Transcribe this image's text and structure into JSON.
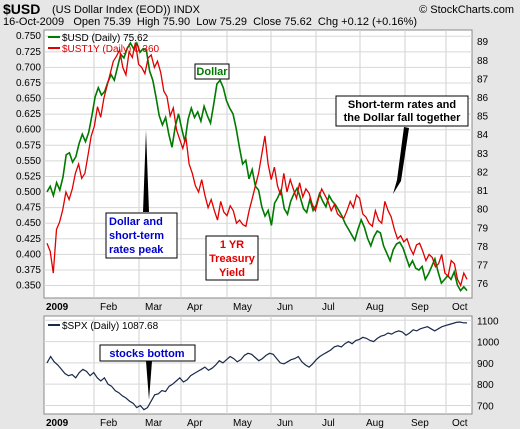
{
  "header": {
    "symbol": "$USD",
    "description": "(US Dollar Index (EOD)) INDX",
    "source": "© StockCharts.com",
    "quote": "16-Oct-2009   Open 75.39  High 75.90  Low 75.29  Close 75.62  Chg +0.12 (+0.16%)"
  },
  "colors": {
    "usd": "#007a00",
    "ust": "#e00000",
    "spx": "#1a2a4a",
    "usd_legend": "#007a00",
    "ust_legend": "#e00000"
  },
  "chart_data": [
    {
      "type": "line",
      "x_ticks": [
        "2009",
        "Feb",
        "Mar",
        "Apr",
        "May",
        "Jun",
        "Jul",
        "Aug",
        "Sep",
        "Oct"
      ],
      "x_ticks_bold": [
        "2009"
      ],
      "left_axis": {
        "ticks": [
          "0.750",
          "0.725",
          "0.700",
          "0.675",
          "0.650",
          "0.625",
          "0.600",
          "0.575",
          "0.550",
          "0.525",
          "0.500",
          "0.475",
          "0.450",
          "0.425",
          "0.400",
          "0.375",
          "0.350"
        ],
        "ylim": [
          0.33,
          0.76
        ]
      },
      "right_axis": {
        "ticks": [
          "89",
          "88",
          "87",
          "86",
          "85",
          "84",
          "83",
          "82",
          "81",
          "80",
          "79",
          "78",
          "77",
          "76"
        ],
        "ylim": [
          75.2,
          89.6
        ]
      },
      "legend": [
        "$USD (Daily) 75.62",
        "$UST1Y (Daily) 0.360"
      ],
      "grid": true,
      "series": [
        {
          "name": "$USD (Daily) 75.62",
          "axis": "right",
          "values": [
            80.9,
            81.2,
            80.7,
            81.4,
            81.0,
            81.7,
            82.9,
            83.0,
            82.5,
            82.8,
            83.5,
            84.0,
            83.6,
            84.1,
            85.0,
            86.0,
            86.5,
            86.1,
            86.3,
            86.8,
            87.2,
            86.9,
            87.6,
            88.3,
            88.1,
            88.6,
            88.9,
            88.6,
            88.9,
            88.4,
            88.6,
            88.5,
            87.4,
            86.9,
            86.0,
            85.0,
            84.5,
            84.9,
            84.0,
            83.3,
            84.4,
            85.1,
            84.3,
            83.6,
            84.8,
            85.4,
            84.9,
            85.2,
            84.7,
            85.5,
            85.0,
            84.6,
            85.6,
            86.7,
            86.9,
            86.5,
            85.8,
            85.4,
            85.1,
            84.3,
            83.3,
            82.4,
            82.6,
            81.6,
            82.1,
            81.2,
            81.0,
            80.1,
            79.6,
            79.9,
            79.1,
            80.3,
            80.6,
            81.0,
            80.0,
            79.7,
            80.4,
            80.8,
            81.1,
            80.6,
            80.0,
            79.8,
            80.5,
            79.9,
            80.2,
            80.8,
            80.4,
            80.1,
            80.7,
            80.4,
            80.2,
            79.9,
            79.6,
            79.2,
            78.9,
            78.6,
            78.3,
            78.9,
            79.4,
            79.0,
            78.4,
            78.0,
            78.5,
            78.8,
            78.7,
            78.0,
            77.6,
            77.2,
            77.8,
            78.1,
            78.2,
            77.9,
            77.4,
            76.9,
            77.2,
            76.8,
            76.7,
            76.9,
            76.2,
            76.5,
            76.9,
            77.3,
            76.6,
            76.0,
            76.2,
            76.4,
            76.2,
            76.6,
            75.9,
            75.6,
            75.8,
            75.6
          ]
        },
        {
          "name": "$UST1Y (Daily) 0.360",
          "axis": "left",
          "values": [
            0.418,
            0.405,
            0.37,
            0.44,
            0.452,
            0.472,
            0.5,
            0.488,
            0.505,
            0.53,
            0.545,
            0.522,
            0.53,
            0.56,
            0.59,
            0.606,
            0.637,
            0.62,
            0.65,
            0.67,
            0.69,
            0.71,
            0.718,
            0.728,
            0.7,
            0.688,
            0.725,
            0.716,
            0.74,
            0.705,
            0.7,
            0.69,
            0.715,
            0.72,
            0.7,
            0.71,
            0.692,
            0.662,
            0.653,
            0.622,
            0.635,
            0.6,
            0.585,
            0.57,
            0.588,
            0.545,
            0.53,
            0.51,
            0.5,
            0.52,
            0.495,
            0.475,
            0.488,
            0.47,
            0.455,
            0.485,
            0.468,
            0.462,
            0.478,
            0.47,
            0.45,
            0.455,
            0.448,
            0.445,
            0.47,
            0.49,
            0.51,
            0.53,
            0.56,
            0.59,
            0.545,
            0.52,
            0.54,
            0.51,
            0.495,
            0.53,
            0.5,
            0.52,
            0.505,
            0.49,
            0.515,
            0.492,
            0.505,
            0.498,
            0.48,
            0.47,
            0.49,
            0.505,
            0.495,
            0.485,
            0.47,
            0.48,
            0.465,
            0.46,
            0.458,
            0.47,
            0.485,
            0.475,
            0.495,
            0.49,
            0.465,
            0.46,
            0.45,
            0.445,
            0.47,
            0.455,
            0.45,
            0.485,
            0.47,
            0.46,
            0.44,
            0.425,
            0.43,
            0.42,
            0.425,
            0.41,
            0.4,
            0.415,
            0.418,
            0.405,
            0.39,
            0.4,
            0.395,
            0.38,
            0.385,
            0.4,
            0.37,
            0.365,
            0.39,
            0.385,
            0.36,
            0.35,
            0.37,
            0.36
          ]
        }
      ],
      "annotations": [
        {
          "text": [
            "Dollar"
          ],
          "color": "#007a00",
          "boxed": true
        },
        {
          "text": [
            "Short-term rates and",
            "the Dollar fall together"
          ],
          "color": "#000000",
          "boxed": true
        },
        {
          "text": [
            "Dollar and",
            "short-term",
            "rates peak"
          ],
          "color": "#0000cc",
          "boxed": true
        },
        {
          "text": [
            "1 YR",
            "Treasury",
            "Yield"
          ],
          "color": "#e00000",
          "boxed": true
        }
      ]
    },
    {
      "type": "line",
      "x_ticks": [
        "2009",
        "Feb",
        "Mar",
        "Apr",
        "May",
        "Jun",
        "Jul",
        "Aug",
        "Sep",
        "Oct"
      ],
      "x_ticks_bold": [
        "2009"
      ],
      "right_axis": {
        "ticks": [
          "1100",
          "1000",
          "900",
          "800",
          "700"
        ],
        "ylim": [
          660,
          1120
        ]
      },
      "legend": [
        "$SPX (Daily) 1087.68"
      ],
      "grid": true,
      "series": [
        {
          "name": "$SPX (Daily) 1087.68",
          "axis": "right",
          "values": [
            900,
            930,
            905,
            890,
            870,
            850,
            840,
            845,
            830,
            855,
            870,
            860,
            840,
            855,
            830,
            815,
            830,
            800,
            790,
            770,
            760,
            745,
            735,
            720,
            710,
            690,
            700,
            680,
            690,
            720,
            750,
            755,
            770,
            765,
            790,
            800,
            815,
            830,
            810,
            820,
            840,
            850,
            860,
            870,
            880,
            865,
            875,
            890,
            910,
            900,
            915,
            930,
            920,
            905,
            915,
            935,
            945,
            940,
            925,
            910,
            920,
            935,
            945,
            940,
            920,
            900,
            895,
            905,
            915,
            920,
            930,
            905,
            890,
            880,
            895,
            915,
            930,
            940,
            950,
            960,
            975,
            980,
            975,
            990,
            1000,
            990,
            1005,
            1010,
            1020,
            1015,
            1005,
            1000,
            1015,
            1025,
            1030,
            1040,
            1035,
            1045,
            1050,
            1045,
            1030,
            1040,
            1055,
            1050,
            1060,
            1065,
            1070,
            1060,
            1050,
            1060,
            1070,
            1075,
            1080,
            1085,
            1090,
            1092,
            1088,
            1087.68
          ]
        }
      ],
      "annotations": [
        {
          "text": [
            "stocks bottom"
          ],
          "color": "#0000cc",
          "boxed": true
        }
      ]
    }
  ]
}
